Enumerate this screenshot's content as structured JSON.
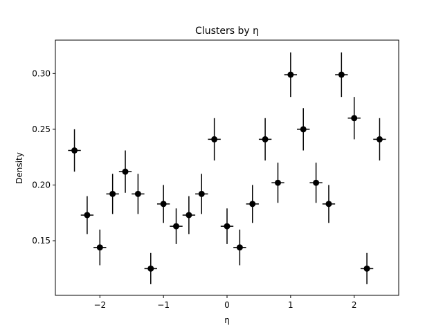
{
  "chart_data": {
    "type": "scatter",
    "title": "Clusters by η",
    "xlabel": "η",
    "ylabel": "Density",
    "xlim": [
      -2.7,
      2.7
    ],
    "ylim": [
      0.101,
      0.33
    ],
    "xticks": [
      -2,
      -1,
      0,
      1,
      2
    ],
    "xtick_labels": [
      "−2",
      "−1",
      "0",
      "1",
      "2"
    ],
    "yticks": [
      0.15,
      0.2,
      0.25,
      0.3
    ],
    "ytick_labels": [
      "0.15",
      "0.20",
      "0.25",
      "0.30"
    ],
    "grid": false,
    "marker_color": "#000000",
    "x_error": 0.1,
    "series": [
      {
        "x": [
          -2.4,
          -2.2,
          -2.0,
          -1.8,
          -1.6,
          -1.4,
          -1.2,
          -1.0,
          -0.8,
          -0.6,
          -0.4,
          -0.2,
          0.0,
          0.2,
          0.4,
          0.6,
          0.8,
          1.0,
          1.2,
          1.4,
          1.6,
          1.8,
          2.0,
          2.2,
          2.4
        ],
        "y": [
          0.231,
          0.173,
          0.144,
          0.192,
          0.212,
          0.192,
          0.125,
          0.183,
          0.163,
          0.173,
          0.192,
          0.241,
          0.163,
          0.144,
          0.183,
          0.241,
          0.202,
          0.299,
          0.25,
          0.202,
          0.183,
          0.299,
          0.26,
          0.125,
          0.241
        ],
        "y_error": [
          0.019,
          0.017,
          0.016,
          0.018,
          0.019,
          0.018,
          0.014,
          0.017,
          0.016,
          0.017,
          0.018,
          0.019,
          0.016,
          0.016,
          0.017,
          0.019,
          0.018,
          0.02,
          0.019,
          0.018,
          0.017,
          0.02,
          0.019,
          0.014,
          0.019
        ]
      }
    ]
  }
}
